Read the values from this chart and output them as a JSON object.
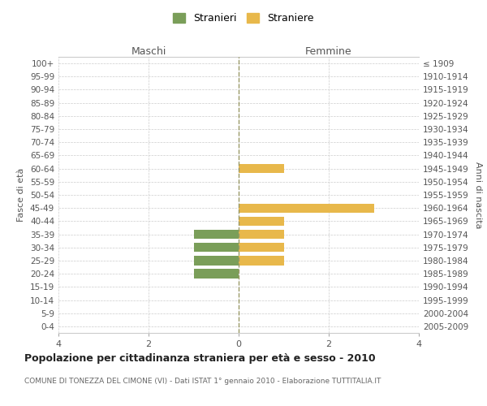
{
  "age_groups": [
    "100+",
    "95-99",
    "90-94",
    "85-89",
    "80-84",
    "75-79",
    "70-74",
    "65-69",
    "60-64",
    "55-59",
    "50-54",
    "45-49",
    "40-44",
    "35-39",
    "30-34",
    "25-29",
    "20-24",
    "15-19",
    "10-14",
    "5-9",
    "0-4"
  ],
  "birth_years": [
    "≤ 1909",
    "1910-1914",
    "1915-1919",
    "1920-1924",
    "1925-1929",
    "1930-1934",
    "1935-1939",
    "1940-1944",
    "1945-1949",
    "1950-1954",
    "1955-1959",
    "1960-1964",
    "1965-1969",
    "1970-1974",
    "1975-1979",
    "1980-1984",
    "1985-1989",
    "1990-1994",
    "1995-1999",
    "2000-2004",
    "2005-2009"
  ],
  "maschi": [
    0,
    0,
    0,
    0,
    0,
    0,
    0,
    0,
    0,
    0,
    0,
    0,
    0,
    -1,
    -1,
    -1,
    -1,
    0,
    0,
    0,
    0
  ],
  "femmine": [
    0,
    0,
    0,
    0,
    0,
    0,
    0,
    0,
    1,
    0,
    0,
    3,
    1,
    1,
    1,
    1,
    0,
    0,
    0,
    0,
    0
  ],
  "color_maschi": "#7a9e59",
  "color_femmine": "#e8b84b",
  "title": "Popolazione per cittadinanza straniera per età e sesso - 2010",
  "subtitle": "COMUNE DI TONEZZA DEL CIMONE (VI) - Dati ISTAT 1° gennaio 2010 - Elaborazione TUTTITALIA.IT",
  "legend_maschi": "Stranieri",
  "legend_femmine": "Straniere",
  "xlabel_left": "Maschi",
  "xlabel_right": "Femmine",
  "ylabel_left": "Fasce di età",
  "ylabel_right": "Anni di nascita",
  "xlim": 4,
  "background_color": "#ffffff",
  "grid_color": "#cccccc"
}
